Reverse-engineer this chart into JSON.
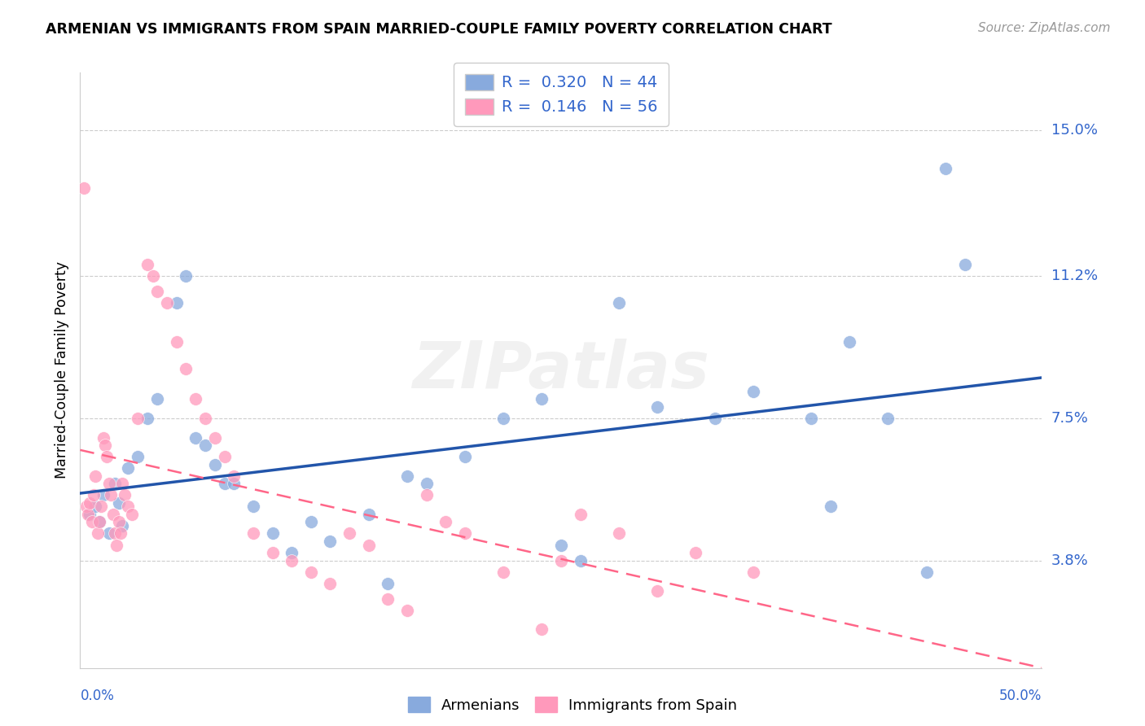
{
  "title": "ARMENIAN VS IMMIGRANTS FROM SPAIN MARRIED-COUPLE FAMILY POVERTY CORRELATION CHART",
  "source": "Source: ZipAtlas.com",
  "ylabel": "Married-Couple Family Poverty",
  "x_left_label": "0.0%",
  "x_right_label": "50.0%",
  "ytick_values": [
    3.8,
    7.5,
    11.2,
    15.0
  ],
  "xmin": 0.0,
  "xmax": 50.0,
  "ymin": 1.0,
  "ymax": 16.5,
  "legend1_r": "0.320",
  "legend1_n": "44",
  "legend2_r": "0.146",
  "legend2_n": "56",
  "watermark": "ZIPatlas",
  "blue_color": "#88AADD",
  "pink_color": "#FF99BB",
  "blue_line_color": "#2255AA",
  "pink_line_color": "#FF6688",
  "label_color": "#3366CC",
  "blue_scatter_x": [
    0.5,
    0.8,
    1.0,
    1.2,
    1.5,
    1.8,
    2.0,
    2.2,
    2.5,
    3.0,
    3.5,
    4.0,
    5.0,
    5.5,
    6.0,
    6.5,
    7.0,
    7.5,
    8.0,
    9.0,
    10.0,
    11.0,
    12.0,
    13.0,
    15.0,
    16.0,
    17.0,
    18.0,
    20.0,
    22.0,
    24.0,
    25.0,
    26.0,
    28.0,
    30.0,
    33.0,
    35.0,
    38.0,
    39.0,
    40.0,
    42.0,
    44.0,
    45.0,
    46.0
  ],
  "blue_scatter_y": [
    5.0,
    5.2,
    4.8,
    5.5,
    4.5,
    5.8,
    5.3,
    4.7,
    6.2,
    6.5,
    7.5,
    8.0,
    10.5,
    11.2,
    7.0,
    6.8,
    6.3,
    5.8,
    5.8,
    5.2,
    4.5,
    4.0,
    4.8,
    4.3,
    5.0,
    3.2,
    6.0,
    5.8,
    6.5,
    7.5,
    8.0,
    4.2,
    3.8,
    10.5,
    7.8,
    7.5,
    8.2,
    7.5,
    5.2,
    9.5,
    7.5,
    3.5,
    14.0,
    11.5
  ],
  "pink_scatter_x": [
    0.2,
    0.3,
    0.4,
    0.5,
    0.6,
    0.7,
    0.8,
    0.9,
    1.0,
    1.1,
    1.2,
    1.3,
    1.4,
    1.5,
    1.6,
    1.7,
    1.8,
    1.9,
    2.0,
    2.1,
    2.2,
    2.3,
    2.5,
    2.7,
    3.0,
    3.5,
    3.8,
    4.0,
    4.5,
    5.0,
    5.5,
    6.0,
    6.5,
    7.0,
    7.5,
    8.0,
    9.0,
    10.0,
    11.0,
    12.0,
    13.0,
    14.0,
    15.0,
    16.0,
    17.0,
    18.0,
    19.0,
    20.0,
    22.0,
    24.0,
    25.0,
    26.0,
    28.0,
    30.0,
    32.0,
    35.0
  ],
  "pink_scatter_y": [
    13.5,
    5.2,
    5.0,
    5.3,
    4.8,
    5.5,
    6.0,
    4.5,
    4.8,
    5.2,
    7.0,
    6.8,
    6.5,
    5.8,
    5.5,
    5.0,
    4.5,
    4.2,
    4.8,
    4.5,
    5.8,
    5.5,
    5.2,
    5.0,
    7.5,
    11.5,
    11.2,
    10.8,
    10.5,
    9.5,
    8.8,
    8.0,
    7.5,
    7.0,
    6.5,
    6.0,
    4.5,
    4.0,
    3.8,
    3.5,
    3.2,
    4.5,
    4.2,
    2.8,
    2.5,
    5.5,
    4.8,
    4.5,
    3.5,
    2.0,
    3.8,
    5.0,
    4.5,
    3.0,
    4.0,
    3.5
  ]
}
